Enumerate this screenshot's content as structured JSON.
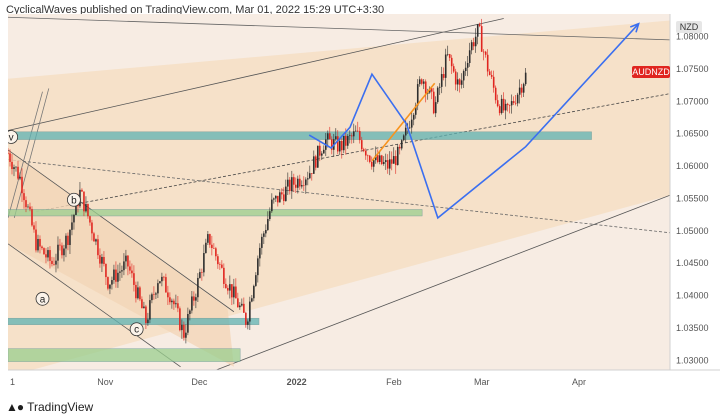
{
  "header": {
    "text": "CyclicalWaves published on TradingView.com, Mar 01, 2022 15:29 UTC+3:30"
  },
  "footer": {
    "brand": "TradingView"
  },
  "colors": {
    "bull": "#2e2e2e",
    "bear": "#e0251f",
    "accent_blue": "#3b6ff0",
    "orange": "#f7931e",
    "teal_zone": "#5fb3b3",
    "green_zone": "#9bcf8f",
    "price_tag_bg": "#e0251f"
  },
  "chart_data": {
    "type": "candlestick",
    "symbol": "AUDNZD",
    "currency_label": "NZD",
    "x_tick_labels": [
      "1",
      "Nov",
      "Dec",
      "2022",
      "Feb",
      "Mar",
      "Apr"
    ],
    "y_ticks": [
      1.03,
      1.035,
      1.04,
      1.045,
      1.05,
      1.055,
      1.06,
      1.065,
      1.07,
      1.075,
      1.08
    ],
    "y_tick_labels": [
      "1.03000",
      "1.03500",
      "1.04000",
      "1.04500",
      "1.05000",
      "1.05500",
      "1.06000",
      "1.06500",
      "1.07000",
      "1.07500",
      "1.08000"
    ],
    "ylim": [
      1.0285,
      1.0835
    ],
    "x_range": [
      "2021-10-01",
      "2022-04-30"
    ],
    "price_path": [
      [
        "2021-10-01",
        1.062
      ],
      [
        "2021-10-05",
        1.058
      ],
      [
        "2021-10-10",
        1.048
      ],
      [
        "2021-10-15",
        1.045
      ],
      [
        "2021-10-20",
        1.049
      ],
      [
        "2021-10-24",
        1.056
      ],
      [
        "2021-10-28",
        1.05
      ],
      [
        "2021-11-02",
        1.042
      ],
      [
        "2021-11-08",
        1.045
      ],
      [
        "2021-11-14",
        1.036
      ],
      [
        "2021-11-18",
        1.043
      ],
      [
        "2021-11-22",
        1.04
      ],
      [
        "2021-11-26",
        1.034
      ],
      [
        "2021-11-30",
        1.041
      ],
      [
        "2021-12-04",
        1.049
      ],
      [
        "2021-12-08",
        1.044
      ],
      [
        "2021-12-12",
        1.04
      ],
      [
        "2021-12-16",
        1.036
      ],
      [
        "2021-12-20",
        1.047
      ],
      [
        "2021-12-24",
        1.054
      ],
      [
        "2021-12-30",
        1.057
      ],
      [
        "2022-01-05",
        1.059
      ],
      [
        "2022-01-10",
        1.064
      ],
      [
        "2022-01-15",
        1.063
      ],
      [
        "2022-01-20",
        1.065
      ],
      [
        "2022-01-25",
        1.061
      ],
      [
        "2022-01-30",
        1.06
      ],
      [
        "2022-02-03",
        1.062
      ],
      [
        "2022-02-06",
        1.067
      ],
      [
        "2022-02-10",
        1.074
      ],
      [
        "2022-02-14",
        1.069
      ],
      [
        "2022-02-18",
        1.077
      ],
      [
        "2022-02-22",
        1.072
      ],
      [
        "2022-02-25",
        1.078
      ],
      [
        "2022-02-28",
        1.081
      ],
      [
        "2022-03-03",
        1.075
      ],
      [
        "2022-03-06",
        1.07
      ],
      [
        "2022-03-09",
        1.068
      ],
      [
        "2022-03-12",
        1.071
      ],
      [
        "2022-03-15",
        1.074
      ]
    ],
    "candle_count": 260,
    "zones": [
      {
        "name": "teal-zone-upper",
        "y0": 1.0653,
        "y1": 1.0641,
        "x0": "2021-10-01",
        "x1": "2022-04-05",
        "color": "#5fb3b3"
      },
      {
        "name": "green-zone-mid",
        "y0": 1.0533,
        "y1": 1.0523,
        "x0": "2021-10-01",
        "x1": "2022-02-10",
        "color": "#9bcf8f"
      },
      {
        "name": "teal-zone-lower",
        "y0": 1.0365,
        "y1": 1.0355,
        "x0": "2021-10-01",
        "x1": "2021-12-20",
        "color": "#5fb3b3"
      },
      {
        "name": "green-zone-bottom",
        "y0": 1.0318,
        "y1": 1.0298,
        "x0": "2021-10-01",
        "x1": "2021-12-14",
        "color": "#9bcf8f"
      }
    ],
    "wave_labels": [
      {
        "text": "v",
        "date": "2021-10-02",
        "price": 1.0645
      },
      {
        "text": "b",
        "date": "2021-10-22",
        "price": 1.0548
      },
      {
        "text": "a",
        "date": "2021-10-12",
        "price": 1.0395
      },
      {
        "text": "c",
        "date": "2021-11-11",
        "price": 1.0348
      }
    ],
    "projection_path": [
      [
        "2022-01-05",
        1.0648
      ],
      [
        "2022-01-12",
        1.0628
      ],
      [
        "2022-01-18",
        1.066
      ],
      [
        "2022-01-25",
        1.0742
      ],
      [
        "2022-02-05",
        1.0665
      ],
      [
        "2022-02-15",
        1.052
      ],
      [
        "2022-03-15",
        1.063
      ],
      [
        "2022-04-20",
        1.082
      ]
    ],
    "orange_line": [
      [
        "2022-01-25",
        1.0608
      ],
      [
        "2022-02-14",
        1.0728
      ]
    ],
    "price_tag": {
      "label": "AUDNZD",
      "price": 1.0745
    },
    "currency_tag_price": 1.0815
  }
}
